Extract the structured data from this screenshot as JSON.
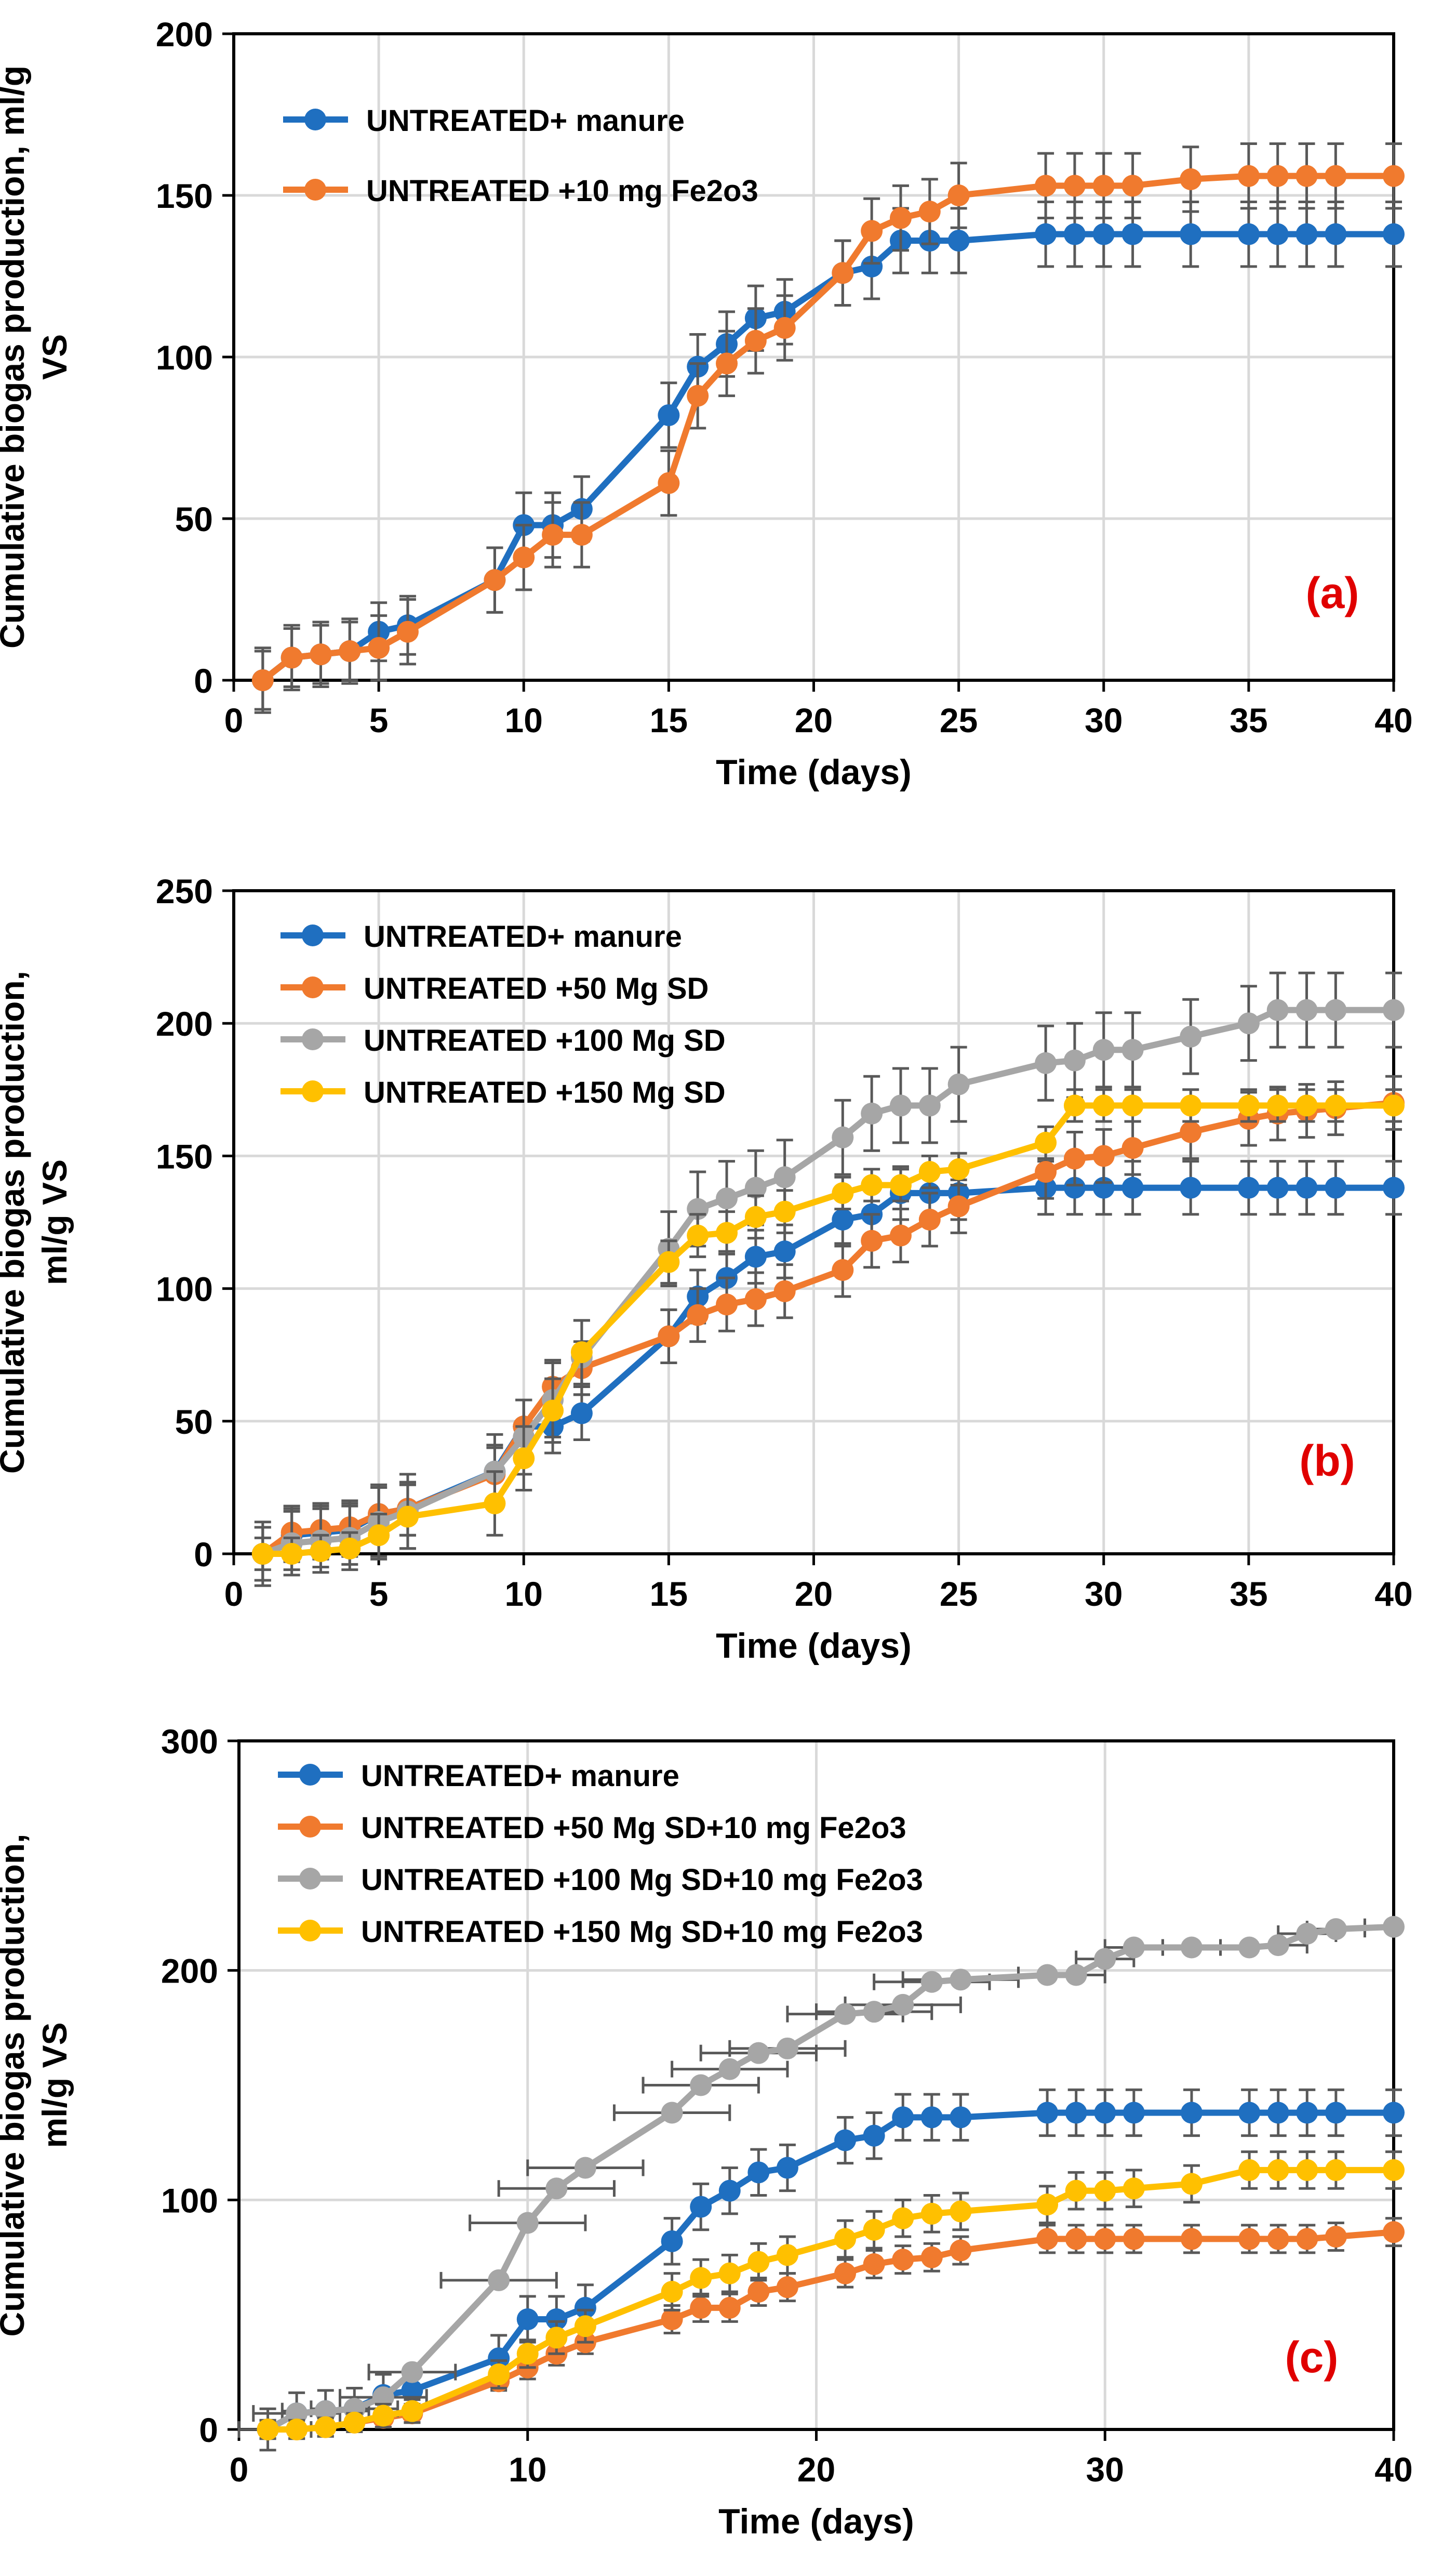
{
  "colors": {
    "blue": "#1f6fc0",
    "orange": "#f07a2e",
    "gray": "#a6a6a6",
    "yellow": "#ffc000",
    "grid": "#d9d9d9",
    "errorbar": "#595959",
    "panel_label": "#e00000"
  },
  "chart_data": [
    {
      "type": "line",
      "panel_label": "(a)",
      "xlabel": "Time (days)",
      "ylabel": [
        "Cumulative biogas production, ml/g",
        "VS"
      ],
      "xlim": [
        0,
        40
      ],
      "ylim": [
        0,
        200
      ],
      "xticks": [
        0,
        5,
        10,
        15,
        20,
        25,
        30,
        35,
        40
      ],
      "yticks": [
        0,
        50,
        100,
        150,
        200
      ],
      "legend_position": "top-left",
      "series": [
        {
          "name": "UNTREATED+ manure",
          "color": "blue",
          "x": [
            1,
            2,
            3,
            4,
            5,
            6,
            9,
            10,
            11,
            12,
            15,
            16,
            17,
            18,
            19,
            21,
            22,
            23,
            24,
            25,
            28,
            29,
            30,
            31,
            33,
            35,
            36,
            37,
            38,
            40
          ],
          "y": [
            0,
            7,
            8,
            9,
            15,
            17,
            31,
            48,
            48,
            53,
            82,
            97,
            104,
            112,
            114,
            126,
            128,
            136,
            136,
            136,
            138,
            138,
            138,
            138,
            138,
            138,
            138,
            138,
            138,
            138
          ],
          "err": [
            9,
            9,
            9,
            9,
            9,
            9,
            10,
            10,
            10,
            10,
            10,
            10,
            10,
            10,
            10,
            10,
            10,
            10,
            10,
            10,
            10,
            10,
            10,
            10,
            10,
            10,
            10,
            10,
            10,
            10
          ]
        },
        {
          "name": "UNTREATED +10 mg Fe2o3",
          "color": "orange",
          "x": [
            1,
            2,
            3,
            4,
            5,
            6,
            9,
            10,
            11,
            12,
            15,
            16,
            17,
            18,
            19,
            21,
            22,
            23,
            24,
            25,
            28,
            29,
            30,
            31,
            33,
            35,
            36,
            37,
            38,
            40
          ],
          "y": [
            0,
            7,
            8,
            9,
            10,
            15,
            31,
            38,
            45,
            45,
            61,
            88,
            98,
            105,
            109,
            126,
            139,
            143,
            145,
            150,
            153,
            153,
            153,
            153,
            155,
            156,
            156,
            156,
            156,
            156
          ],
          "err": [
            10,
            10,
            10,
            10,
            10,
            10,
            10,
            10,
            10,
            10,
            10,
            10,
            10,
            10,
            10,
            10,
            10,
            10,
            10,
            10,
            10,
            10,
            10,
            10,
            10,
            10,
            10,
            10,
            10,
            10
          ]
        }
      ]
    },
    {
      "type": "line",
      "panel_label": "(b)",
      "xlabel": "Time (days)",
      "ylabel": [
        "Cumulative biogas production,",
        "ml/g VS"
      ],
      "xlim": [
        0,
        40
      ],
      "ylim": [
        0,
        250
      ],
      "xticks": [
        0,
        5,
        10,
        15,
        20,
        25,
        30,
        35,
        40
      ],
      "yticks": [
        0,
        50,
        100,
        150,
        200,
        250
      ],
      "legend_position": "top-left",
      "series": [
        {
          "name": "UNTREATED+ manure",
          "color": "blue",
          "x": [
            1,
            2,
            3,
            4,
            5,
            6,
            9,
            10,
            11,
            12,
            15,
            16,
            17,
            18,
            19,
            21,
            22,
            23,
            24,
            25,
            28,
            29,
            30,
            31,
            33,
            35,
            36,
            37,
            38,
            40
          ],
          "y": [
            0,
            7,
            8,
            9,
            15,
            17,
            31,
            48,
            48,
            53,
            82,
            97,
            104,
            112,
            114,
            126,
            128,
            136,
            136,
            136,
            138,
            138,
            138,
            138,
            138,
            138,
            138,
            138,
            138,
            138
          ],
          "err": [
            10,
            10,
            10,
            10,
            10,
            10,
            10,
            10,
            10,
            10,
            10,
            10,
            10,
            10,
            10,
            10,
            10,
            10,
            10,
            10,
            10,
            10,
            10,
            10,
            10,
            10,
            10,
            10,
            10,
            10
          ]
        },
        {
          "name": "UNTREATED +50 Mg SD",
          "color": "orange",
          "x": [
            1,
            2,
            3,
            4,
            5,
            6,
            9,
            10,
            11,
            12,
            15,
            16,
            17,
            18,
            19,
            21,
            22,
            23,
            24,
            25,
            28,
            29,
            30,
            31,
            33,
            35,
            36,
            37,
            38,
            40
          ],
          "y": [
            0,
            8,
            9,
            10,
            15,
            17,
            30,
            48,
            63,
            70,
            82,
            90,
            94,
            96,
            99,
            107,
            118,
            120,
            126,
            131,
            144,
            149,
            150,
            153,
            159,
            164,
            166,
            167,
            168,
            170
          ],
          "err": [
            10,
            10,
            10,
            10,
            10,
            10,
            10,
            10,
            10,
            10,
            10,
            10,
            10,
            10,
            10,
            10,
            10,
            10,
            10,
            10,
            10,
            10,
            10,
            10,
            10,
            10,
            10,
            10,
            10,
            10
          ]
        },
        {
          "name": "UNTREATED +100 Mg SD",
          "color": "gray",
          "x": [
            1,
            2,
            3,
            4,
            5,
            6,
            9,
            10,
            11,
            12,
            15,
            16,
            17,
            18,
            19,
            21,
            22,
            23,
            24,
            25,
            28,
            29,
            30,
            31,
            33,
            35,
            36,
            37,
            38,
            40
          ],
          "y": [
            0,
            4,
            5,
            6,
            12,
            16,
            31,
            44,
            58,
            74,
            115,
            130,
            134,
            138,
            142,
            157,
            166,
            169,
            169,
            177,
            185,
            186,
            190,
            190,
            195,
            200,
            205,
            205,
            205,
            205
          ],
          "err": [
            12,
            12,
            12,
            12,
            14,
            14,
            14,
            14,
            14,
            14,
            14,
            14,
            14,
            14,
            14,
            14,
            14,
            14,
            14,
            14,
            14,
            14,
            14,
            14,
            14,
            14,
            14,
            14,
            14,
            14
          ]
        },
        {
          "name": "UNTREATED +150 Mg SD",
          "color": "yellow",
          "x": [
            1,
            2,
            3,
            4,
            5,
            6,
            9,
            10,
            11,
            12,
            15,
            16,
            17,
            18,
            19,
            21,
            22,
            23,
            24,
            25,
            28,
            29,
            30,
            31,
            33,
            35,
            36,
            37,
            38,
            40
          ],
          "y": [
            0,
            0,
            1,
            2,
            7,
            14,
            19,
            36,
            54,
            76,
            110,
            120,
            121,
            127,
            129,
            136,
            139,
            139,
            144,
            145,
            155,
            169,
            169,
            169,
            169,
            169,
            169,
            169,
            169,
            169
          ],
          "err": [
            6,
            6,
            6,
            6,
            8,
            12,
            12,
            12,
            12,
            12,
            8,
            8,
            8,
            8,
            8,
            6,
            6,
            6,
            6,
            6,
            6,
            6,
            6,
            6,
            6,
            6,
            6,
            6,
            6,
            6
          ]
        }
      ]
    },
    {
      "type": "line",
      "panel_label": "(c)",
      "xlabel": "Time (days)",
      "ylabel": [
        "Cumulative biogas production,",
        "ml/g VS"
      ],
      "xlim": [
        0,
        40
      ],
      "ylim": [
        0,
        300
      ],
      "xticks": [
        0,
        10,
        20,
        30,
        40
      ],
      "yticks": [
        0,
        100,
        200,
        300
      ],
      "legend_position": "top-left",
      "series": [
        {
          "name": "UNTREATED+ manure",
          "color": "blue",
          "x": [
            1,
            2,
            3,
            4,
            5,
            6,
            9,
            10,
            11,
            12,
            15,
            16,
            17,
            18,
            19,
            21,
            22,
            23,
            24,
            25,
            28,
            29,
            30,
            31,
            33,
            35,
            36,
            37,
            38,
            40
          ],
          "y": [
            0,
            7,
            8,
            9,
            15,
            17,
            31,
            48,
            48,
            53,
            82,
            97,
            104,
            112,
            114,
            126,
            128,
            136,
            136,
            136,
            138,
            138,
            138,
            138,
            138,
            138,
            138,
            138,
            138,
            138
          ],
          "err": [
            9,
            9,
            9,
            9,
            9,
            9,
            10,
            10,
            10,
            10,
            10,
            10,
            10,
            10,
            10,
            10,
            10,
            10,
            10,
            10,
            10,
            10,
            10,
            10,
            10,
            10,
            10,
            10,
            10,
            10
          ]
        },
        {
          "name": "UNTREATED +50 Mg SD+10 mg  Fe2o3",
          "color": "orange",
          "x": [
            1,
            2,
            3,
            4,
            5,
            6,
            9,
            10,
            11,
            12,
            15,
            16,
            17,
            18,
            19,
            21,
            22,
            23,
            24,
            25,
            28,
            29,
            30,
            31,
            33,
            35,
            36,
            37,
            38,
            40
          ],
          "y": [
            0,
            0,
            1,
            3,
            5,
            7,
            21,
            27,
            33,
            38,
            48,
            53,
            53,
            60,
            62,
            68,
            72,
            74,
            75,
            78,
            83,
            83,
            83,
            83,
            83,
            83,
            83,
            83,
            84,
            86
          ],
          "err": [
            4,
            4,
            4,
            4,
            4,
            4,
            4,
            5,
            5,
            5,
            6,
            6,
            6,
            6,
            6,
            6,
            6,
            6,
            6,
            6,
            6,
            6,
            6,
            6,
            6,
            6,
            6,
            6,
            6,
            6
          ]
        },
        {
          "name": "UNTREATED +100 Mg SD+10 mg  Fe2o3",
          "color": "gray",
          "x": [
            1,
            2,
            3,
            4,
            5,
            6,
            9,
            10,
            11,
            12,
            15,
            16,
            17,
            18,
            19,
            21,
            22,
            23,
            24,
            25,
            28,
            29,
            30,
            31,
            33,
            35,
            36,
            37,
            38,
            40
          ],
          "y": [
            0,
            7,
            8,
            9,
            14,
            25,
            65,
            90,
            105,
            114,
            138,
            150,
            157,
            164,
            166,
            181,
            182,
            185,
            195,
            196,
            198,
            198,
            205,
            210,
            210,
            210,
            211,
            216,
            218,
            219
          ],
          "err": [
            0,
            0,
            0,
            0,
            0,
            0,
            0,
            0,
            0,
            0,
            0,
            0,
            0,
            0,
            0,
            0,
            0,
            0,
            0,
            0,
            0,
            0,
            0,
            0,
            0,
            0,
            0,
            0,
            0,
            0
          ],
          "xerr": [
            1.5,
            1.5,
            1.5,
            1.5,
            1.5,
            1.5,
            2,
            2,
            2,
            2,
            2,
            2,
            2,
            2,
            2,
            2,
            2,
            2,
            2,
            2,
            1,
            1,
            1,
            1,
            1,
            1,
            1,
            1,
            1,
            1
          ]
        },
        {
          "name": "UNTREATED +150 Mg SD+10 mg  Fe2o3",
          "color": "yellow",
          "x": [
            1,
            2,
            3,
            4,
            5,
            6,
            9,
            10,
            11,
            12,
            15,
            16,
            17,
            18,
            19,
            21,
            22,
            23,
            24,
            25,
            28,
            29,
            30,
            31,
            33,
            35,
            36,
            37,
            38,
            40
          ],
          "y": [
            0,
            0,
            1,
            3,
            6,
            8,
            24,
            33,
            40,
            45,
            60,
            66,
            68,
            73,
            76,
            83,
            87,
            92,
            94,
            95,
            98,
            104,
            104,
            105,
            107,
            113,
            113,
            113,
            113,
            113
          ],
          "err": [
            4,
            4,
            4,
            4,
            5,
            5,
            6,
            6,
            7,
            7,
            8,
            8,
            8,
            8,
            8,
            8,
            8,
            8,
            8,
            8,
            8,
            8,
            8,
            8,
            8,
            8,
            8,
            8,
            8,
            8
          ]
        }
      ]
    }
  ]
}
